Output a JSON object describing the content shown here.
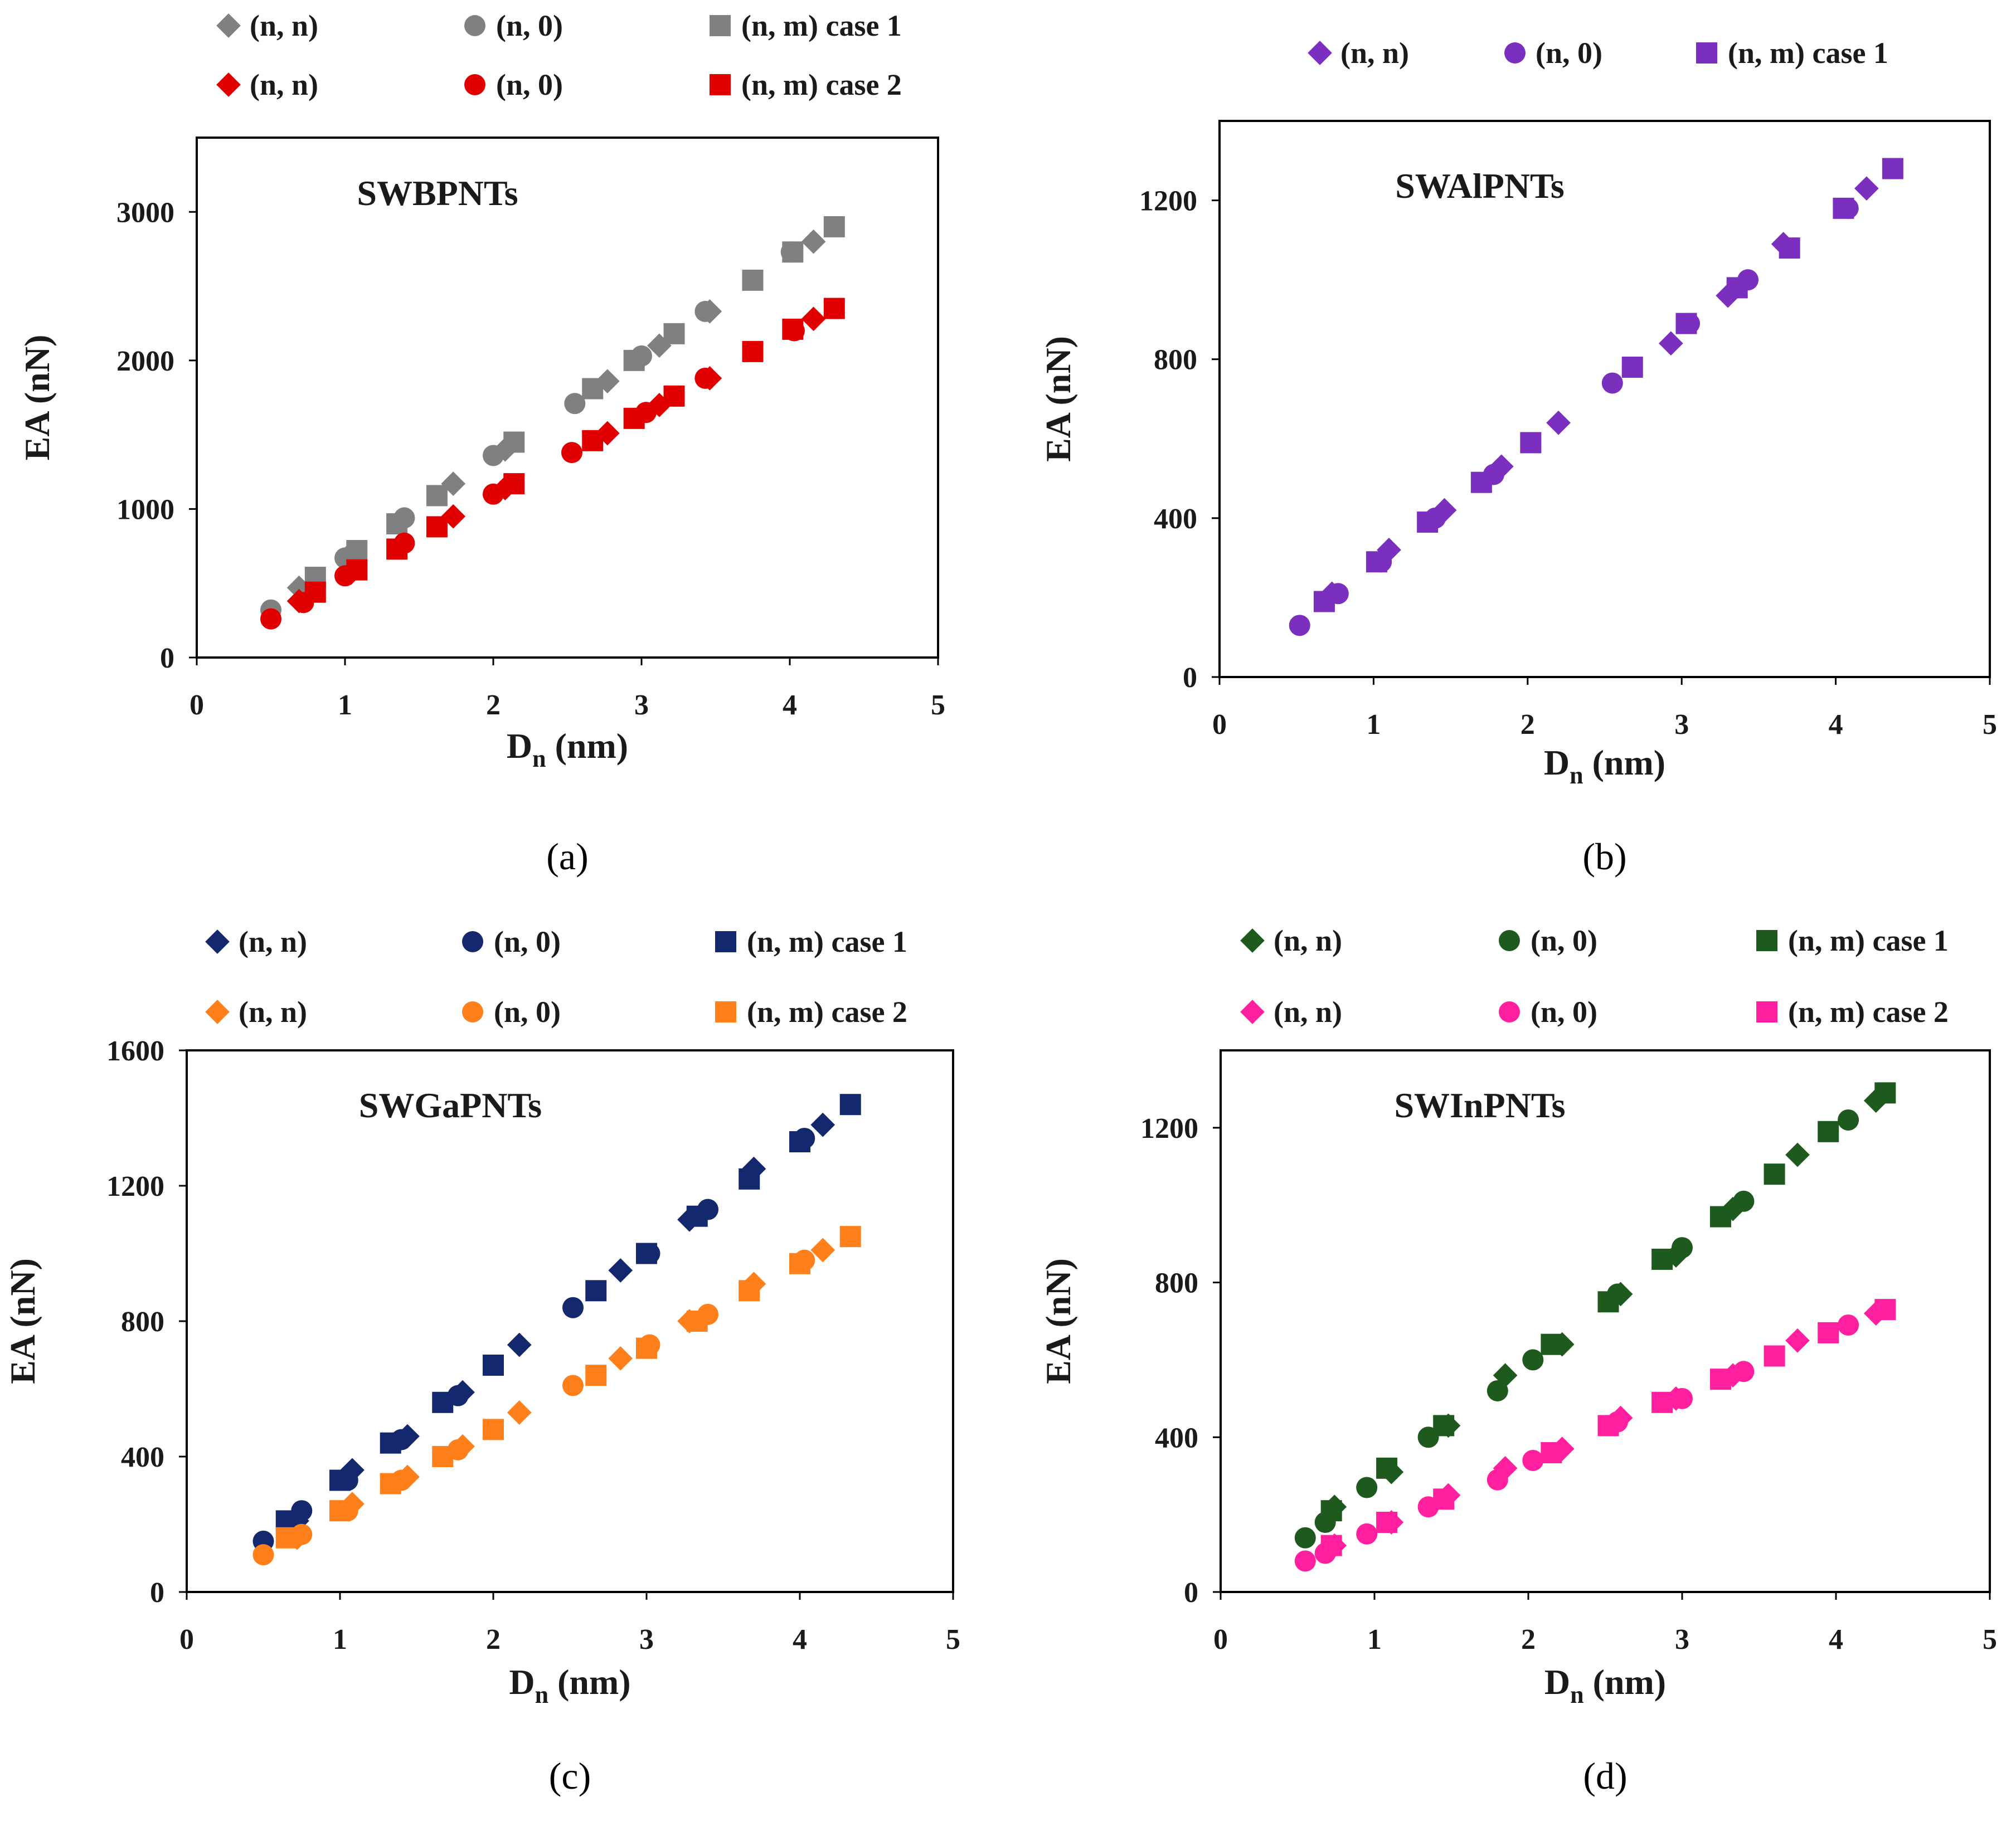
{
  "chart_data": [
    {
      "panel_label": "(a)",
      "type": "scatter",
      "title": "SWBPNTs",
      "xlabel": "D",
      "xlabel_sub": "n",
      "xlabel_unit": " (nm)",
      "ylabel": "EA (nN)",
      "xlim": [
        0,
        5
      ],
      "ylim": [
        0,
        3500
      ],
      "xticks": [
        0,
        1,
        2,
        3,
        4,
        5
      ],
      "yticks": [
        0,
        1000,
        2000,
        3000
      ],
      "legend_position": "top",
      "series": [
        {
          "name": "(n, n)",
          "marker": "diamond",
          "color": "#808080",
          "group": "case 1",
          "x": [
            0.69,
            1.04,
            1.39,
            1.73,
            2.08,
            2.77,
            3.12,
            3.46,
            4.16
          ],
          "y": [
            470,
            700,
            930,
            1170,
            1400,
            1860,
            2100,
            2330,
            2800
          ]
        },
        {
          "name": "(n, 0)",
          "marker": "circle",
          "color": "#808080",
          "group": "case 1",
          "x": [
            0.5,
            1.0,
            1.4,
            2.0,
            2.55,
            3.0,
            3.43,
            4.01
          ],
          "y": [
            320,
            670,
            940,
            1360,
            1710,
            2030,
            2330,
            2730
          ]
        },
        {
          "name": "(n, m) case 1",
          "marker": "square",
          "color": "#808080",
          "group": "case 1",
          "x": [
            0.8,
            1.08,
            1.35,
            1.62,
            2.14,
            2.67,
            2.95,
            3.22,
            3.75,
            4.02,
            4.3
          ],
          "y": [
            540,
            720,
            900,
            1090,
            1450,
            1810,
            2000,
            2180,
            2540,
            2730,
            2900
          ]
        },
        {
          "name": "(n, n)",
          "marker": "diamond",
          "color": "#e00000",
          "group": "case 2",
          "x": [
            0.69,
            1.04,
            1.39,
            1.73,
            2.08,
            2.77,
            3.12,
            3.46,
            4.16
          ],
          "y": [
            380,
            570,
            760,
            950,
            1140,
            1510,
            1700,
            1880,
            2280
          ]
        },
        {
          "name": "(n, 0)",
          "marker": "circle",
          "color": "#e00000",
          "group": "case 2",
          "x": [
            0.5,
            0.72,
            1.0,
            1.4,
            2.0,
            2.53,
            3.03,
            3.43,
            4.03
          ],
          "y": [
            260,
            370,
            550,
            770,
            1100,
            1380,
            1650,
            1880,
            2200
          ]
        },
        {
          "name": "(n, m) case 2",
          "marker": "square",
          "color": "#e00000",
          "group": "case 2",
          "x": [
            0.8,
            1.08,
            1.35,
            1.62,
            2.14,
            2.67,
            2.95,
            3.22,
            3.75,
            4.02,
            4.3
          ],
          "y": [
            440,
            590,
            730,
            880,
            1170,
            1460,
            1610,
            1760,
            2060,
            2210,
            2350
          ]
        }
      ]
    },
    {
      "panel_label": "(b)",
      "type": "scatter",
      "title": "SWAlPNTs",
      "xlabel": "D",
      "xlabel_sub": "n",
      "xlabel_unit": " (nm)",
      "ylabel": "EA (nN)",
      "xlim": [
        0,
        5
      ],
      "ylim": [
        0,
        1400
      ],
      "xticks": [
        0,
        1,
        2,
        3,
        4,
        5
      ],
      "yticks": [
        0,
        400,
        800,
        1200
      ],
      "legend_position": "top",
      "series": [
        {
          "name": "(n, n)",
          "marker": "diamond",
          "color": "#7b2fbe",
          "group": "case 1",
          "x": [
            0.73,
            1.1,
            1.46,
            1.83,
            2.2,
            2.93,
            3.3,
            3.66,
            4.2
          ],
          "y": [
            210,
            320,
            420,
            530,
            640,
            840,
            960,
            1090,
            1230
          ]
        },
        {
          "name": "(n, 0)",
          "marker": "circle",
          "color": "#7b2fbe",
          "group": "case 1",
          "x": [
            0.52,
            0.77,
            1.05,
            1.4,
            1.78,
            2.55,
            3.05,
            3.43,
            4.08
          ],
          "y": [
            130,
            210,
            290,
            400,
            510,
            740,
            890,
            1000,
            1180
          ]
        },
        {
          "name": "(n, m) case 1",
          "marker": "square",
          "color": "#7b2fbe",
          "group": "case 1",
          "x": [
            0.68,
            1.02,
            1.35,
            1.7,
            2.02,
            2.68,
            3.03,
            3.36,
            3.7,
            4.05,
            4.37
          ],
          "y": [
            190,
            290,
            390,
            490,
            590,
            780,
            890,
            980,
            1080,
            1180,
            1280
          ]
        }
      ]
    },
    {
      "panel_label": "(c)",
      "type": "scatter",
      "title": "SWGaPNTs",
      "xlabel": "D",
      "xlabel_sub": "n",
      "xlabel_unit": " (nm)",
      "ylabel": "EA (nN)",
      "xlim": [
        0,
        5
      ],
      "ylim": [
        0,
        1600
      ],
      "xticks": [
        0,
        1,
        2,
        3,
        4,
        5
      ],
      "yticks": [
        0,
        400,
        800,
        1200,
        1600
      ],
      "legend_position": "top",
      "series": [
        {
          "name": "(n, n)",
          "marker": "diamond",
          "color": "#14286e",
          "group": "case 1",
          "x": [
            0.72,
            1.08,
            1.44,
            1.8,
            2.17,
            2.83,
            3.28,
            3.7,
            4.15
          ],
          "y": [
            210,
            360,
            460,
            590,
            730,
            950,
            1100,
            1250,
            1380
          ]
        },
        {
          "name": "(n, 0)",
          "marker": "circle",
          "color": "#14286e",
          "group": "case 1",
          "x": [
            0.5,
            0.75,
            1.05,
            1.4,
            1.77,
            2.52,
            3.02,
            3.4,
            4.03
          ],
          "y": [
            150,
            240,
            330,
            450,
            580,
            840,
            1000,
            1130,
            1340
          ]
        },
        {
          "name": "(n, m) case 1",
          "marker": "square",
          "color": "#14286e",
          "group": "case 1",
          "x": [
            0.65,
            1.0,
            1.33,
            1.67,
            2.0,
            2.67,
            3.0,
            3.33,
            3.67,
            4.0,
            4.33
          ],
          "y": [
            210,
            330,
            440,
            560,
            670,
            890,
            1000,
            1110,
            1220,
            1330,
            1440
          ]
        },
        {
          "name": "(n, n)",
          "marker": "diamond",
          "color": "#ff7f1a",
          "group": "case 2",
          "x": [
            0.72,
            1.08,
            1.44,
            1.8,
            2.17,
            2.83,
            3.28,
            3.7,
            4.15
          ],
          "y": [
            160,
            260,
            340,
            430,
            530,
            690,
            800,
            910,
            1010
          ]
        },
        {
          "name": "(n, 0)",
          "marker": "circle",
          "color": "#ff7f1a",
          "group": "case 2",
          "x": [
            0.5,
            0.75,
            1.05,
            1.4,
            1.77,
            2.52,
            3.02,
            3.4,
            4.03
          ],
          "y": [
            110,
            170,
            240,
            330,
            420,
            610,
            730,
            820,
            980
          ]
        },
        {
          "name": "(n, m) case 2",
          "marker": "square",
          "color": "#ff7f1a",
          "group": "case 2",
          "x": [
            0.65,
            1.0,
            1.33,
            1.67,
            2.0,
            2.67,
            3.0,
            3.33,
            3.67,
            4.0,
            4.33
          ],
          "y": [
            160,
            240,
            320,
            400,
            480,
            640,
            720,
            800,
            890,
            970,
            1050
          ]
        }
      ]
    },
    {
      "panel_label": "(d)",
      "type": "scatter",
      "title": "SWInPNTs",
      "xlabel": "D",
      "xlabel_sub": "n",
      "xlabel_unit": " (nm)",
      "ylabel": "EA (nN)",
      "xlim": [
        0,
        5
      ],
      "ylim": [
        0,
        1400
      ],
      "xticks": [
        0,
        1,
        2,
        3,
        4,
        5
      ],
      "yticks": [
        0,
        400,
        800,
        1200
      ],
      "legend_position": "top",
      "series": [
        {
          "name": "(n, n)",
          "marker": "diamond",
          "color": "#1e5a1e",
          "group": "case 1",
          "x": [
            0.74,
            1.11,
            1.48,
            1.85,
            2.22,
            2.6,
            2.96,
            3.33,
            3.75,
            4.26
          ],
          "y": [
            220,
            310,
            430,
            560,
            640,
            770,
            870,
            990,
            1130,
            1270
          ]
        },
        {
          "name": "(n, 0)",
          "marker": "circle",
          "color": "#1e5a1e",
          "group": "case 1",
          "x": [
            0.55,
            0.68,
            0.95,
            1.35,
            1.8,
            2.03,
            2.58,
            3.0,
            3.4,
            4.08
          ],
          "y": [
            140,
            180,
            270,
            400,
            520,
            600,
            770,
            890,
            1010,
            1220
          ]
        },
        {
          "name": "(n, m) case 1",
          "marker": "square",
          "color": "#1e5a1e",
          "group": "case 1",
          "x": [
            0.72,
            1.08,
            1.45,
            2.15,
            2.52,
            2.87,
            3.25,
            3.6,
            3.95,
            4.32
          ],
          "y": [
            210,
            320,
            430,
            640,
            750,
            860,
            970,
            1080,
            1190,
            1290
          ]
        },
        {
          "name": "(n, n)",
          "marker": "diamond",
          "color": "#ff1f9f",
          "group": "case 2",
          "x": [
            0.74,
            1.11,
            1.48,
            1.85,
            2.22,
            2.6,
            2.96,
            3.33,
            3.75,
            4.26
          ],
          "y": [
            120,
            180,
            250,
            320,
            370,
            450,
            500,
            560,
            650,
            720
          ]
        },
        {
          "name": "(n, 0)",
          "marker": "circle",
          "color": "#ff1f9f",
          "group": "case 2",
          "x": [
            0.55,
            0.68,
            0.95,
            1.35,
            1.8,
            2.03,
            2.58,
            3.0,
            3.4,
            4.08
          ],
          "y": [
            80,
            100,
            150,
            220,
            290,
            340,
            440,
            500,
            570,
            690
          ]
        },
        {
          "name": "(n, m) case 2",
          "marker": "square",
          "color": "#ff1f9f",
          "group": "case 2",
          "x": [
            0.72,
            1.08,
            1.45,
            2.15,
            2.52,
            2.87,
            3.25,
            3.6,
            3.95,
            4.32
          ],
          "y": [
            120,
            180,
            240,
            360,
            430,
            490,
            550,
            610,
            670,
            730
          ]
        }
      ]
    }
  ]
}
